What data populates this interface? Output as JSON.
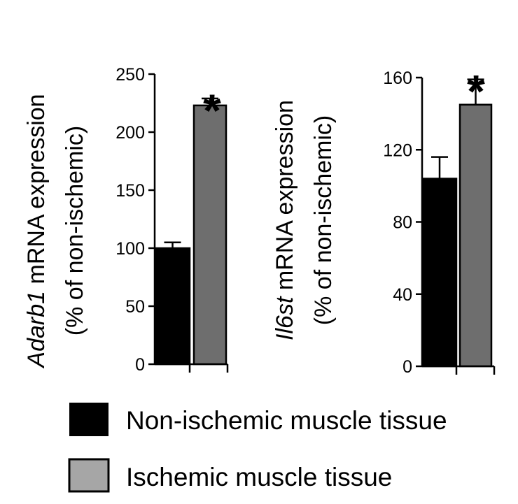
{
  "legend": [
    {
      "label": "Non-ischemic muscle tissue",
      "color": "#000000"
    },
    {
      "label": "Ischemic muscle tissue",
      "color": "#a6a6a6"
    }
  ],
  "chart_data": [
    {
      "type": "bar",
      "gene": "Adarb1",
      "ylabel_rest": " mRNA expression",
      "ylabel_line2": "(% of non-ischemic)",
      "ylim": [
        0,
        250
      ],
      "yticks": [
        "0",
        "50",
        "100",
        "150",
        "200",
        "250"
      ],
      "grid": false,
      "series": [
        {
          "name": "Non-ischemic muscle tissue",
          "value": 100,
          "error": 5,
          "color": "#000000"
        },
        {
          "name": "Ischemic muscle tissue",
          "value": 223,
          "error": 6,
          "color": "#6e6e6e"
        }
      ],
      "significance": "*"
    },
    {
      "type": "bar",
      "gene": "Il6st",
      "ylabel_rest": " mRNA expression",
      "ylabel_line2": "(% of non-ischemic)",
      "ylim": [
        0,
        160
      ],
      "yticks": [
        "0",
        "40",
        "80",
        "120",
        "160"
      ],
      "grid": false,
      "series": [
        {
          "name": "Non-ischemic muscle tissue",
          "value": 104,
          "error": 12,
          "color": "#000000"
        },
        {
          "name": "Ischemic muscle tissue",
          "value": 145,
          "error": 14,
          "color": "#6e6e6e"
        }
      ],
      "significance": "*"
    }
  ]
}
